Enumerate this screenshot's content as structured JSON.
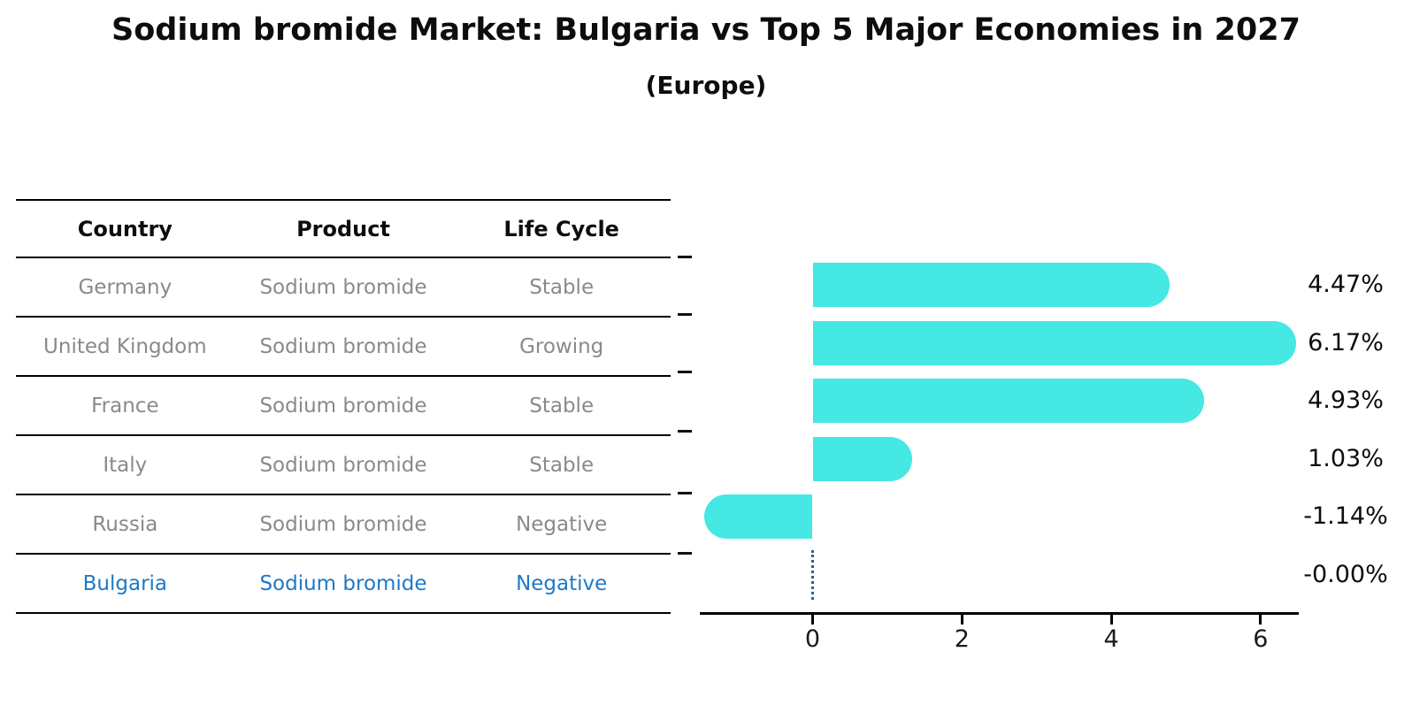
{
  "title": "Sodium bromide Market: Bulgaria vs Top 5 Major Economies in 2027",
  "subtitle": "(Europe)",
  "table": {
    "headers": [
      "Country",
      "Product",
      "Life Cycle"
    ],
    "rows": [
      {
        "country": "Germany",
        "product": "Sodium bromide",
        "life_cycle": "Stable",
        "highlighted": false
      },
      {
        "country": "United Kingdom",
        "product": "Sodium bromide",
        "life_cycle": "Growing",
        "highlighted": false
      },
      {
        "country": "France",
        "product": "Sodium bromide",
        "life_cycle": "Stable",
        "highlighted": false
      },
      {
        "country": "Italy",
        "product": "Sodium bromide",
        "life_cycle": "Stable",
        "highlighted": false
      },
      {
        "country": "Russia",
        "product": "Sodium bromide",
        "life_cycle": "Negative",
        "highlighted": false
      },
      {
        "country": "Bulgaria",
        "product": "Sodium bromide",
        "life_cycle": "Negative",
        "highlighted": true
      }
    ]
  },
  "chart_data": {
    "type": "bar",
    "orientation": "horizontal",
    "title": "Sodium bromide Market: Bulgaria vs Top 5 Major Economies in 2027 (Europe)",
    "categories": [
      "Germany",
      "United Kingdom",
      "France",
      "Italy",
      "Russia",
      "Bulgaria"
    ],
    "values": [
      4.47,
      6.17,
      4.93,
      1.03,
      -1.14,
      -0.0
    ],
    "value_labels": [
      "4.47%",
      "6.17%",
      "4.93%",
      "1.03%",
      "-1.14%",
      "-0.00%"
    ],
    "xlabel": "",
    "ylabel": "",
    "x_ticks": [
      0,
      2,
      4,
      6
    ],
    "xlim": [
      -1.5,
      6.55
    ],
    "grid": false,
    "legend": null,
    "bar_color": "#45e8e2",
    "zero_marker_color": "#2a6099",
    "zero_marker_style": "dotted"
  },
  "colors": {
    "bar": "#45e8e2",
    "highlight_text": "#1e78c8",
    "table_text": "#8a8a8a",
    "heading_text": "#0d0d0d",
    "axis": "#000000",
    "zero_marker": "#2a6099"
  }
}
